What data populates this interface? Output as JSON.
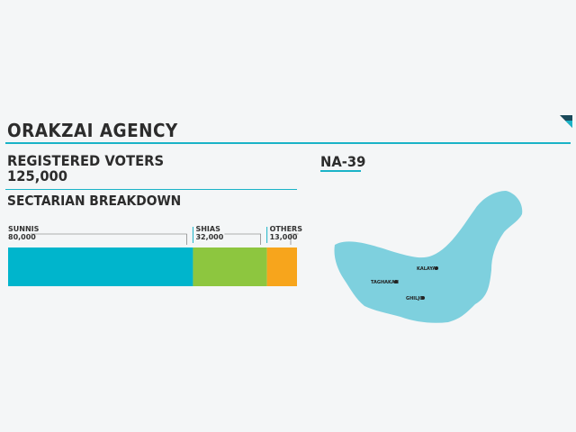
{
  "header": {
    "title": "ORAKZAI AGENCY",
    "registered_label": "REGISTERED VOTERS",
    "registered_value": "125,000",
    "breakdown_label": "SECTARIAN BREAKDOWN",
    "constituency": "NA-39"
  },
  "chart_data": {
    "type": "bar",
    "orientation": "horizontal-stacked",
    "total": 125000,
    "categories": [
      "SUNNIS",
      "SHIAS",
      "OTHERS"
    ],
    "values": [
      80000,
      32000,
      13000
    ],
    "value_labels": [
      "80,000",
      "32,000",
      "13,000"
    ],
    "colors": [
      "#00b5cc",
      "#8dc63f",
      "#f7a51c"
    ]
  },
  "map": {
    "fill": "#7ed0de",
    "towns": [
      {
        "name": "KALAYA"
      },
      {
        "name": "TAGHAKAN"
      },
      {
        "name": "GHILJO"
      }
    ]
  }
}
